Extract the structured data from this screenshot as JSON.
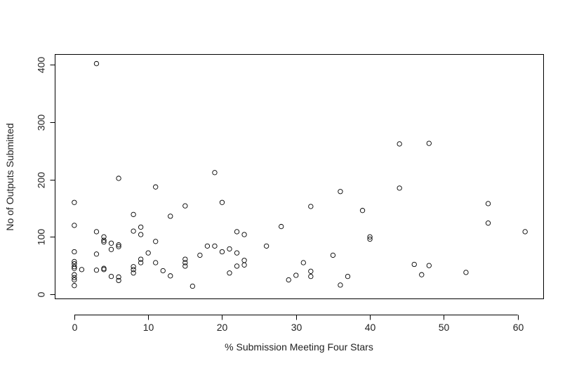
{
  "chart_data": {
    "type": "scatter",
    "title": "",
    "xlabel": "% Submission Meeting Four Stars",
    "ylabel": "No of Outputs Submitted",
    "xlim": [
      -2.6,
      63.5
    ],
    "ylim": [
      -8,
      418
    ],
    "x_ticks": [
      0,
      10,
      20,
      30,
      40,
      50,
      60
    ],
    "y_ticks": [
      0,
      100,
      200,
      300,
      400
    ],
    "grid": false,
    "legend": "none",
    "point_color": "#000000",
    "points": [
      {
        "x": 0,
        "y": 160
      },
      {
        "x": 0,
        "y": 120
      },
      {
        "x": 0,
        "y": 74
      },
      {
        "x": 0,
        "y": 57
      },
      {
        "x": 0,
        "y": 53
      },
      {
        "x": 0,
        "y": 48
      },
      {
        "x": 0,
        "y": 45
      },
      {
        "x": 0,
        "y": 34
      },
      {
        "x": 0,
        "y": 29
      },
      {
        "x": 0,
        "y": 25
      },
      {
        "x": 0,
        "y": 15
      },
      {
        "x": 1,
        "y": 43
      },
      {
        "x": 3,
        "y": 402
      },
      {
        "x": 3,
        "y": 109
      },
      {
        "x": 3,
        "y": 70
      },
      {
        "x": 3,
        "y": 42
      },
      {
        "x": 4,
        "y": 100
      },
      {
        "x": 4,
        "y": 94
      },
      {
        "x": 4,
        "y": 91
      },
      {
        "x": 4,
        "y": 45
      },
      {
        "x": 4,
        "y": 43
      },
      {
        "x": 5,
        "y": 89
      },
      {
        "x": 5,
        "y": 78
      },
      {
        "x": 5,
        "y": 31
      },
      {
        "x": 6,
        "y": 202
      },
      {
        "x": 6,
        "y": 86
      },
      {
        "x": 6,
        "y": 83
      },
      {
        "x": 6,
        "y": 30
      },
      {
        "x": 6,
        "y": 24
      },
      {
        "x": 8,
        "y": 139
      },
      {
        "x": 8,
        "y": 110
      },
      {
        "x": 8,
        "y": 48
      },
      {
        "x": 8,
        "y": 43
      },
      {
        "x": 8,
        "y": 37
      },
      {
        "x": 9,
        "y": 117
      },
      {
        "x": 9,
        "y": 104
      },
      {
        "x": 9,
        "y": 61
      },
      {
        "x": 9,
        "y": 55
      },
      {
        "x": 10,
        "y": 72
      },
      {
        "x": 11,
        "y": 187
      },
      {
        "x": 11,
        "y": 92
      },
      {
        "x": 11,
        "y": 55
      },
      {
        "x": 12,
        "y": 41
      },
      {
        "x": 13,
        "y": 136
      },
      {
        "x": 13,
        "y": 32
      },
      {
        "x": 15,
        "y": 154
      },
      {
        "x": 15,
        "y": 61
      },
      {
        "x": 15,
        "y": 55
      },
      {
        "x": 15,
        "y": 49
      },
      {
        "x": 16,
        "y": 14
      },
      {
        "x": 17,
        "y": 68
      },
      {
        "x": 18,
        "y": 84
      },
      {
        "x": 19,
        "y": 212
      },
      {
        "x": 19,
        "y": 84
      },
      {
        "x": 20,
        "y": 160
      },
      {
        "x": 20,
        "y": 74
      },
      {
        "x": 21,
        "y": 79
      },
      {
        "x": 21,
        "y": 37
      },
      {
        "x": 22,
        "y": 109
      },
      {
        "x": 22,
        "y": 72
      },
      {
        "x": 22,
        "y": 49
      },
      {
        "x": 23,
        "y": 104
      },
      {
        "x": 23,
        "y": 59
      },
      {
        "x": 23,
        "y": 51
      },
      {
        "x": 26,
        "y": 84
      },
      {
        "x": 28,
        "y": 118
      },
      {
        "x": 29,
        "y": 25
      },
      {
        "x": 30,
        "y": 33
      },
      {
        "x": 31,
        "y": 55
      },
      {
        "x": 32,
        "y": 153
      },
      {
        "x": 32,
        "y": 40
      },
      {
        "x": 32,
        "y": 31
      },
      {
        "x": 35,
        "y": 68
      },
      {
        "x": 36,
        "y": 179
      },
      {
        "x": 36,
        "y": 16
      },
      {
        "x": 37,
        "y": 31
      },
      {
        "x": 39,
        "y": 146
      },
      {
        "x": 40,
        "y": 100
      },
      {
        "x": 40,
        "y": 96
      },
      {
        "x": 44,
        "y": 262
      },
      {
        "x": 44,
        "y": 185
      },
      {
        "x": 46,
        "y": 52
      },
      {
        "x": 47,
        "y": 34
      },
      {
        "x": 48,
        "y": 263
      },
      {
        "x": 48,
        "y": 50
      },
      {
        "x": 53,
        "y": 38
      },
      {
        "x": 56,
        "y": 158
      },
      {
        "x": 56,
        "y": 124
      },
      {
        "x": 61,
        "y": 109
      }
    ]
  }
}
